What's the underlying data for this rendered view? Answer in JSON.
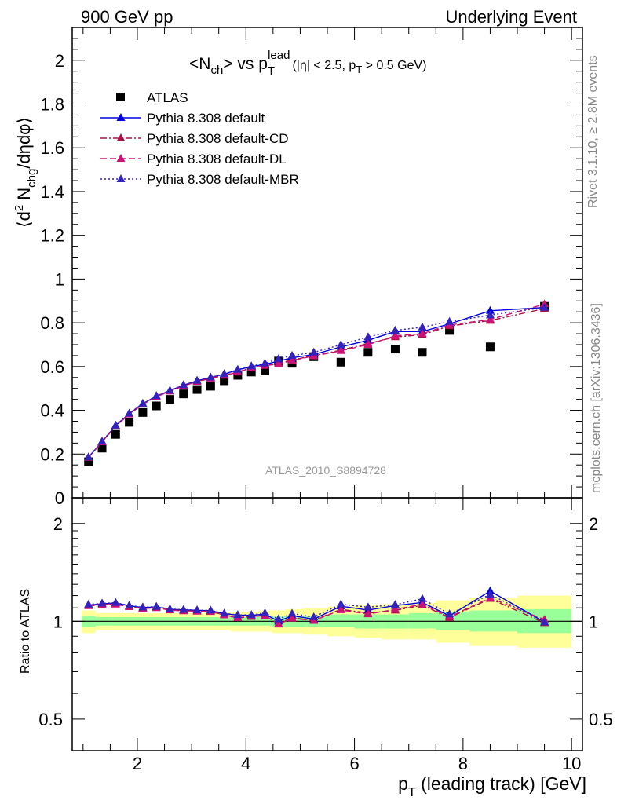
{
  "header": {
    "left": "900 GeV pp",
    "right": "Underlying Event"
  },
  "side_labels": {
    "rivet": "Rivet 3.1.10, ≥ 2.8M events",
    "mcplots": "mcplots.cern.ch [arXiv:1306.3436]"
  },
  "chart_data": {
    "type": "scatter",
    "title": "<Nch> vs pT lead (|η| < 2.5, pT > 0.5 GeV)",
    "analysis_id": "ATLAS_2010_S8894728",
    "xlabel": "pT (leading track) [GeV]",
    "ylabel": "⟨d²Nchg/dηdφ⟩",
    "ratio_ylabel": "Ratio to ATLAS",
    "xlim": [
      0.8,
      10.2
    ],
    "ylim": [
      0,
      2.15
    ],
    "ratio_ylim": [
      0.4,
      2.4
    ],
    "ratio_scale": "log",
    "x_ticks": [
      "2",
      "4",
      "6",
      "8",
      "10"
    ],
    "y_ticks": [
      "0",
      "0.2",
      "0.4",
      "0.6",
      "0.8",
      "1",
      "1.2",
      "1.4",
      "1.6",
      "1.8",
      "2"
    ],
    "ratio_ticks": [
      "0.5",
      "1",
      "2"
    ],
    "legend_position": "top-left",
    "x": [
      1.1,
      1.35,
      1.6,
      1.85,
      2.1,
      2.35,
      2.6,
      2.85,
      3.1,
      3.35,
      3.6,
      3.85,
      4.1,
      4.35,
      4.6,
      4.85,
      5.25,
      5.75,
      6.25,
      6.75,
      7.25,
      7.75,
      8.5,
      9.5
    ],
    "series": [
      {
        "name": "ATLAS",
        "marker": "square",
        "color": "#000000",
        "values": [
          0.165,
          0.227,
          0.29,
          0.345,
          0.39,
          0.42,
          0.45,
          0.475,
          0.495,
          0.51,
          0.535,
          0.56,
          0.575,
          0.58,
          0.625,
          0.615,
          0.645,
          0.62,
          0.665,
          0.68,
          0.665,
          0.765,
          0.69,
          0.875
        ]
      },
      {
        "name": "Pythia 8.308 default",
        "marker": "triangle",
        "line": "solid",
        "color": "#0000dd",
        "values": [
          0.185,
          0.257,
          0.33,
          0.385,
          0.43,
          0.465,
          0.49,
          0.515,
          0.535,
          0.55,
          0.565,
          0.585,
          0.6,
          0.61,
          0.625,
          0.64,
          0.655,
          0.69,
          0.72,
          0.76,
          0.76,
          0.795,
          0.855,
          0.87
        ]
      },
      {
        "name": "Pythia 8.308 default-CD",
        "marker": "triangle",
        "line": "dashdot",
        "color": "#aa1144",
        "values": [
          0.185,
          0.256,
          0.328,
          0.383,
          0.428,
          0.463,
          0.488,
          0.512,
          0.532,
          0.547,
          0.56,
          0.575,
          0.595,
          0.605,
          0.615,
          0.63,
          0.65,
          0.675,
          0.705,
          0.735,
          0.745,
          0.785,
          0.81,
          0.865
        ]
      },
      {
        "name": "Pythia 8.308 default-DL",
        "marker": "triangle",
        "line": "dashed",
        "color": "#cc1177",
        "values": [
          0.184,
          0.255,
          0.327,
          0.382,
          0.427,
          0.462,
          0.487,
          0.511,
          0.531,
          0.546,
          0.559,
          0.574,
          0.594,
          0.604,
          0.612,
          0.628,
          0.648,
          0.672,
          0.7,
          0.74,
          0.75,
          0.79,
          0.815,
          0.885
        ]
      },
      {
        "name": "Pythia 8.308 default-MBR",
        "marker": "triangle",
        "line": "dotted",
        "color": "#3322bb",
        "values": [
          0.186,
          0.258,
          0.331,
          0.386,
          0.431,
          0.466,
          0.491,
          0.516,
          0.536,
          0.551,
          0.566,
          0.586,
          0.602,
          0.615,
          0.635,
          0.65,
          0.665,
          0.7,
          0.735,
          0.765,
          0.78,
          0.805,
          0.835,
          0.87
        ]
      }
    ],
    "ratio_band_stat": {
      "color": "#99ff99",
      "lower": [
        0.96,
        0.97,
        0.97,
        0.97,
        0.97,
        0.97,
        0.97,
        0.97,
        0.97,
        0.97,
        0.97,
        0.97,
        0.97,
        0.97,
        0.96,
        0.96,
        0.96,
        0.96,
        0.95,
        0.95,
        0.95,
        0.94,
        0.93,
        0.92
      ],
      "upper": [
        1.04,
        1.03,
        1.03,
        1.03,
        1.03,
        1.03,
        1.03,
        1.03,
        1.03,
        1.03,
        1.03,
        1.03,
        1.03,
        1.03,
        1.04,
        1.04,
        1.04,
        1.05,
        1.05,
        1.05,
        1.06,
        1.07,
        1.08,
        1.09
      ]
    },
    "ratio_band_syst": {
      "color": "#ffff99",
      "lower": [
        0.92,
        0.94,
        0.94,
        0.94,
        0.94,
        0.94,
        0.94,
        0.94,
        0.94,
        0.94,
        0.94,
        0.93,
        0.93,
        0.93,
        0.92,
        0.92,
        0.91,
        0.9,
        0.89,
        0.88,
        0.88,
        0.86,
        0.84,
        0.83
      ],
      "upper": [
        1.08,
        1.06,
        1.06,
        1.06,
        1.06,
        1.06,
        1.06,
        1.06,
        1.06,
        1.06,
        1.07,
        1.07,
        1.07,
        1.08,
        1.08,
        1.09,
        1.1,
        1.11,
        1.12,
        1.13,
        1.14,
        1.16,
        1.18,
        1.2
      ]
    }
  }
}
